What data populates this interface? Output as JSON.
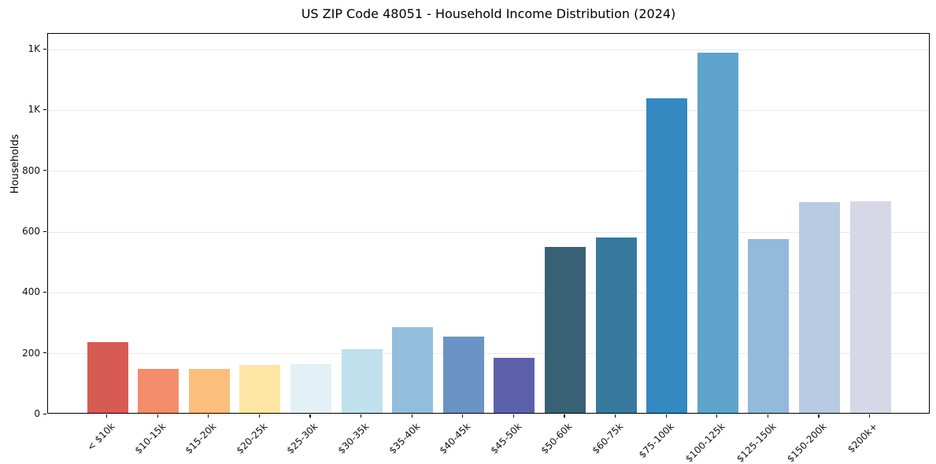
{
  "chart_data": {
    "type": "bar",
    "title": "US ZIP Code 48051 - Household Income Distribution (2024)",
    "xlabel": "",
    "ylabel": "Households",
    "categories": [
      "< $10k",
      "$10-15k",
      "$15-20k",
      "$20-25k",
      "$25-30k",
      "$30-35k",
      "$35-40k",
      "$40-45k",
      "$45-50k",
      "$50-60k",
      "$60-75k",
      "$75-100k",
      "$100-125k",
      "$125-150k",
      "$150-200k",
      "$200k+"
    ],
    "values": [
      233,
      146,
      146,
      158,
      161,
      210,
      281,
      251,
      182,
      546,
      578,
      1035,
      1185,
      572,
      693,
      697
    ],
    "bar_colors": [
      "#d65c53",
      "#f48d6c",
      "#fcbe7d",
      "#fde5a4",
      "#e3f0f6",
      "#bfe0ec",
      "#93bedb",
      "#6b93c5",
      "#5c60ab",
      "#396175",
      "#38799e",
      "#3389c0",
      "#5fa4cc",
      "#93b9db",
      "#b9cbe3",
      "#d6d8e7"
    ],
    "ylim": [
      0,
      1252
    ],
    "yticks": {
      "values": [
        0,
        200,
        400,
        600,
        800,
        1000,
        1200
      ],
      "labels": [
        "0",
        "200",
        "400",
        "600",
        "800",
        "1K",
        "1K"
      ]
    },
    "grid": "horizontal",
    "grid_color": "#e9e9ee",
    "legend": "none",
    "plot_border": "box"
  }
}
